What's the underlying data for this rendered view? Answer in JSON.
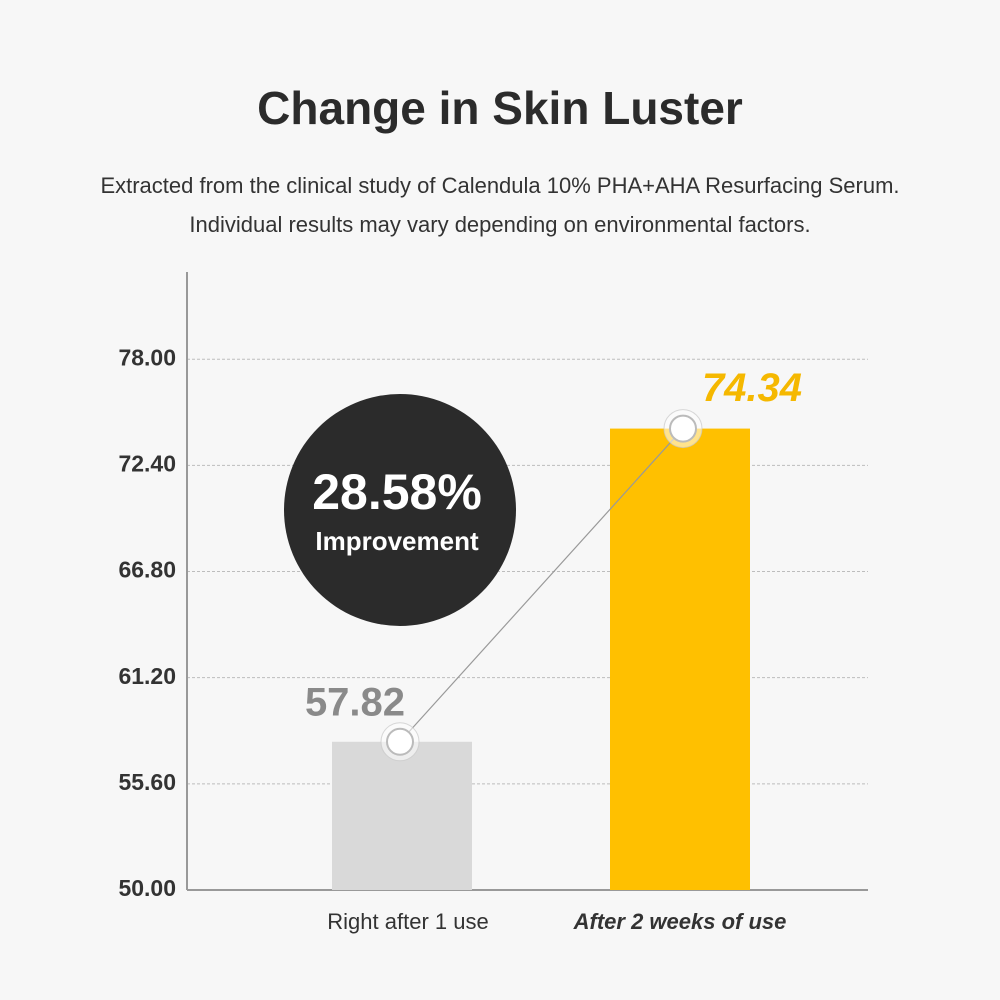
{
  "chart_data": {
    "type": "bar",
    "title": "Change in Skin Luster",
    "subtitle": [
      "Extracted from the clinical study of Calendula 10% PHA+AHA Resurfacing Serum.",
      "Individual results may vary depending on environmental factors."
    ],
    "categories": [
      "Right after 1 use",
      "After 2 weeks of use"
    ],
    "values": [
      57.82,
      74.34
    ],
    "colors": [
      "#d9d9d9",
      "#ffc000"
    ],
    "value_label_colors": [
      "#8a8a8a",
      "#f5b800"
    ],
    "ylim": [
      50,
      82.6
    ],
    "yticks": [
      {
        "value": 50,
        "label": "50.00"
      },
      {
        "value": 55.6,
        "label": "55.60"
      },
      {
        "value": 61.2,
        "label": "61.20"
      },
      {
        "value": 66.8,
        "label": "66.80"
      },
      {
        "value": 72.4,
        "label": "72.40"
      },
      {
        "value": 78,
        "label": "78.00"
      }
    ],
    "grid": true,
    "annotation": {
      "value": "28.58%",
      "text": "Improvement"
    }
  }
}
